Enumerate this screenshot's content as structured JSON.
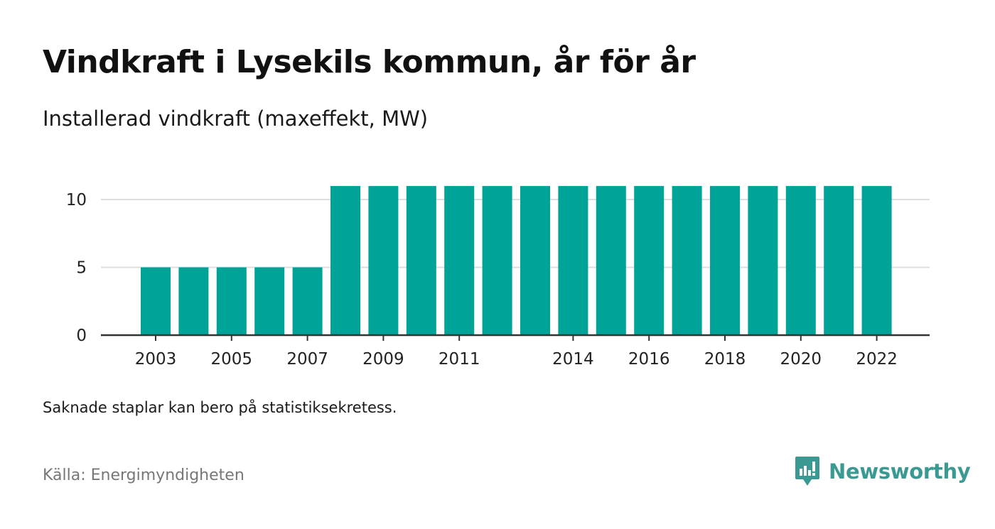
{
  "title": "Vindkraft i Lysekils kommun, år för år",
  "subtitle": "Installerad vindkraft (maxeffekt, MW)",
  "note": "Saknade staplar kan bero på statistiksekretess.",
  "source": "Källa: Energimyndigheten",
  "brand": {
    "name": "Newsworthy",
    "icon": "newsworthy-logo-icon",
    "color": "#3a9a93"
  },
  "chart_data": {
    "type": "bar",
    "categories": [
      "2003",
      "2004",
      "2005",
      "2006",
      "2007",
      "2008",
      "2009",
      "2010",
      "2011",
      "2012",
      "2013",
      "2014",
      "2015",
      "2016",
      "2017",
      "2018",
      "2019",
      "2020",
      "2021",
      "2022"
    ],
    "values": [
      5,
      5,
      5,
      5,
      5,
      11,
      11,
      11,
      11,
      11,
      11,
      11,
      11,
      11,
      11,
      11,
      11,
      11,
      11,
      11
    ],
    "x_tick_labels": [
      "2003",
      "2005",
      "2007",
      "2009",
      "2011",
      "2014",
      "2016",
      "2018",
      "2020",
      "2022"
    ],
    "y_ticks": [
      0,
      5,
      10
    ],
    "ylim": [
      0,
      11
    ],
    "xlabel": "",
    "ylabel": "",
    "bar_color": "#00a397",
    "grid": true,
    "legend": "none"
  }
}
